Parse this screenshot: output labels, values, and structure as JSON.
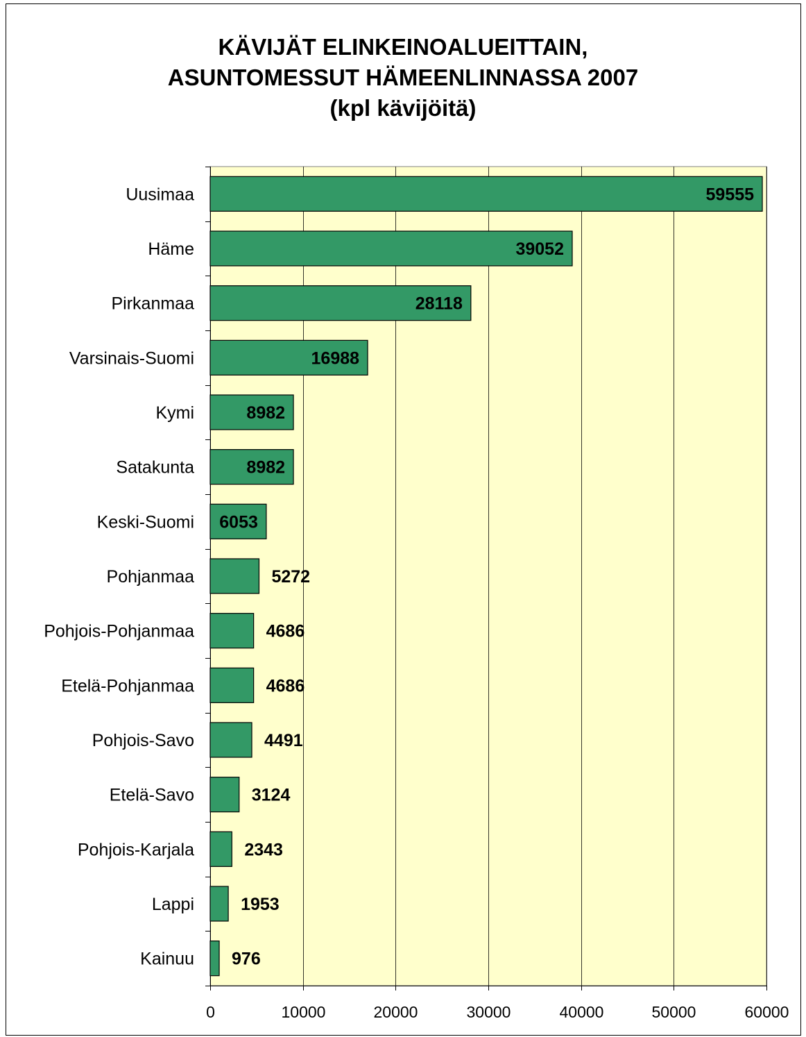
{
  "chart_data": {
    "type": "bar",
    "orientation": "horizontal",
    "title_lines": [
      "KÄVIJÄT ELINKEINOALUEITTAIN,",
      "ASUNTOMESSUT HÄMEENLINNASSA 2007",
      "(kpl kävijöitä)"
    ],
    "categories": [
      "Uusimaa",
      "Häme",
      "Pirkanmaa",
      "Varsinais-Suomi",
      "Kymi",
      "Satakunta",
      "Keski-Suomi",
      "Pohjanmaa",
      "Pohjois-Pohjanmaa",
      "Etelä-Pohjanmaa",
      "Pohjois-Savo",
      "Etelä-Savo",
      "Pohjois-Karjala",
      "Lappi",
      "Kainuu"
    ],
    "values": [
      59555,
      39052,
      28118,
      16988,
      8982,
      8982,
      6053,
      5272,
      4686,
      4686,
      4491,
      3124,
      2343,
      1953,
      976
    ],
    "xlim": [
      0,
      60000
    ],
    "x_ticks": [
      0,
      10000,
      20000,
      30000,
      40000,
      50000,
      60000
    ],
    "grid": "vertical",
    "colors": {
      "bar": "#339966",
      "plot_background": "#ffffcc",
      "grid": "#000000"
    }
  }
}
